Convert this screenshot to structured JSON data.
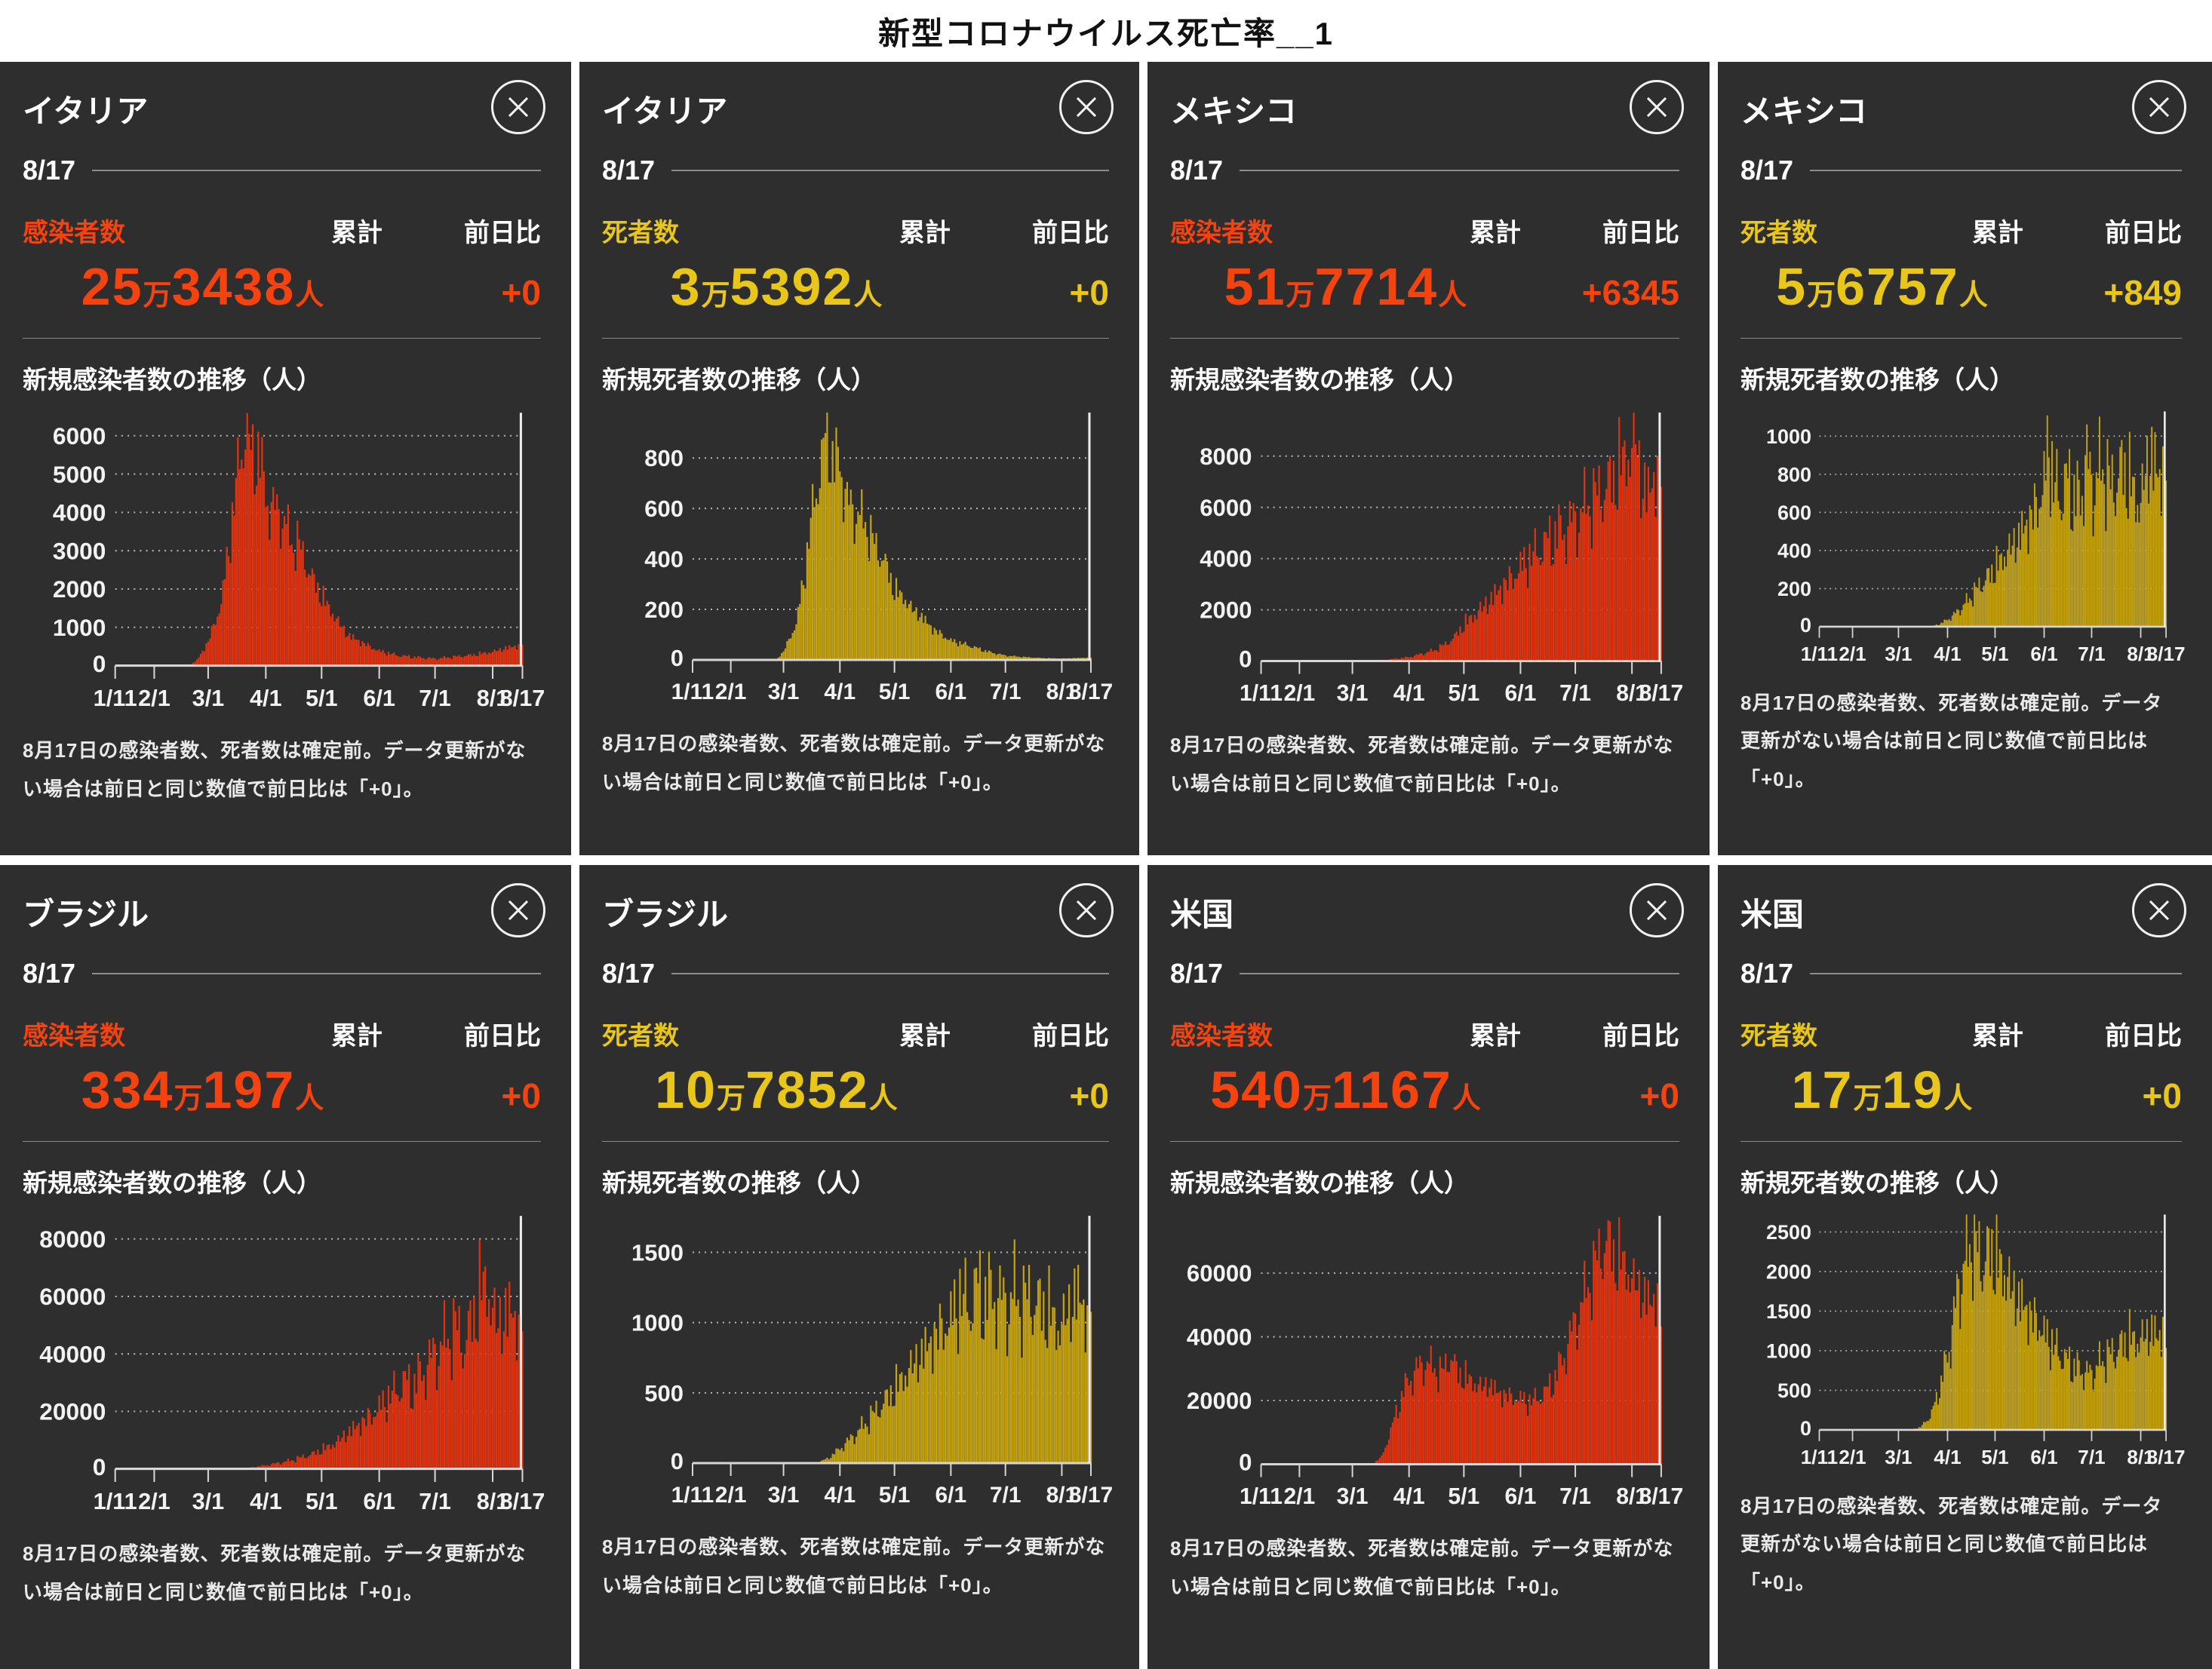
{
  "page_title": "新型コロナウイルス死亡率__1",
  "labels": {
    "date": "8/17",
    "cumulative": "累計",
    "day_over_day": "前日比",
    "man": "万",
    "person": "人"
  },
  "note": "8月17日の感染者数、死者数は確定前。データ更新がない場合は前日と同じ数値で前日比は「+0」。",
  "colors": {
    "infection_text": "#f5430f",
    "infection_bar": "#e23310",
    "death_text": "#e8c61a",
    "death_bar": "#c7a512",
    "panel_bg": "#2e2e2e",
    "grid": "#b5b5b5",
    "axis": "#d6d6d6",
    "cursor": "#ededed",
    "tick_text": "#f2f2f2"
  },
  "x_axis": {
    "total_days": 219,
    "tick_days": [
      0,
      21,
      50,
      81,
      111,
      142,
      172,
      203,
      219
    ],
    "tick_labels": [
      "1/11",
      "2/1",
      "3/1",
      "4/1",
      "5/1",
      "6/1",
      "7/1",
      "8/1",
      "8/17"
    ]
  },
  "panels": [
    {
      "country": "イタリア",
      "metric": "感染者数",
      "metric_type": "infection",
      "value_man": "25",
      "value_rest": "3438",
      "diff": "+0",
      "chart_title": "新規感染者数の推移（人）",
      "chart": {
        "type": "bar",
        "ylim": 6600,
        "yticks": [
          1000,
          2000,
          3000,
          4000,
          5000,
          6000
        ],
        "noise": 0.3,
        "anchors": [
          [
            0,
            0
          ],
          [
            40,
            0
          ],
          [
            44,
            150
          ],
          [
            50,
            650
          ],
          [
            57,
            1700
          ],
          [
            62,
            3600
          ],
          [
            66,
            5300
          ],
          [
            70,
            6550
          ],
          [
            73,
            5700
          ],
          [
            77,
            5900
          ],
          [
            81,
            4600
          ],
          [
            85,
            4300
          ],
          [
            91,
            4000
          ],
          [
            95,
            3300
          ],
          [
            98,
            3400
          ],
          [
            102,
            2900
          ],
          [
            105,
            2500
          ],
          [
            111,
            1900
          ],
          [
            118,
            1350
          ],
          [
            125,
            850
          ],
          [
            132,
            650
          ],
          [
            142,
            400
          ],
          [
            152,
            280
          ],
          [
            162,
            230
          ],
          [
            172,
            190
          ],
          [
            182,
            240
          ],
          [
            192,
            290
          ],
          [
            203,
            380
          ],
          [
            210,
            480
          ],
          [
            217,
            550
          ],
          [
            219,
            630
          ]
        ]
      }
    },
    {
      "country": "イタリア",
      "metric": "死者数",
      "metric_type": "death",
      "value_man": "3",
      "value_rest": "5392",
      "diff": "+0",
      "chart_title": "新規死者数の推移（人）",
      "chart": {
        "type": "bar",
        "ylim": 980,
        "yticks": [
          200,
          400,
          600,
          800
        ],
        "noise": 0.3,
        "anchors": [
          [
            0,
            0
          ],
          [
            46,
            0
          ],
          [
            50,
            35
          ],
          [
            57,
            150
          ],
          [
            62,
            380
          ],
          [
            66,
            620
          ],
          [
            70,
            790
          ],
          [
            74,
            950
          ],
          [
            78,
            800
          ],
          [
            81,
            830
          ],
          [
            85,
            650
          ],
          [
            90,
            610
          ],
          [
            95,
            570
          ],
          [
            100,
            480
          ],
          [
            105,
            420
          ],
          [
            111,
            290
          ],
          [
            116,
            260
          ],
          [
            121,
            210
          ],
          [
            126,
            180
          ],
          [
            132,
            130
          ],
          [
            142,
            80
          ],
          [
            152,
            60
          ],
          [
            162,
            35
          ],
          [
            172,
            18
          ],
          [
            182,
            12
          ],
          [
            192,
            8
          ],
          [
            203,
            6
          ],
          [
            219,
            10
          ]
        ]
      }
    },
    {
      "country": "メキシコ",
      "metric": "感染者数",
      "metric_type": "infection",
      "value_man": "51",
      "value_rest": "7714",
      "diff": "+6345",
      "chart_title": "新規感染者数の推移（人）",
      "chart": {
        "type": "bar",
        "ylim": 9700,
        "yticks": [
          2000,
          4000,
          6000,
          8000
        ],
        "noise": 0.38,
        "anchors": [
          [
            0,
            0
          ],
          [
            58,
            0
          ],
          [
            64,
            30
          ],
          [
            72,
            80
          ],
          [
            81,
            160
          ],
          [
            88,
            300
          ],
          [
            95,
            450
          ],
          [
            101,
            700
          ],
          [
            106,
            1000
          ],
          [
            111,
            1500
          ],
          [
            118,
            2000
          ],
          [
            125,
            2500
          ],
          [
            132,
            3100
          ],
          [
            138,
            3500
          ],
          [
            142,
            3900
          ],
          [
            149,
            4400
          ],
          [
            156,
            4900
          ],
          [
            163,
            5300
          ],
          [
            168,
            5600
          ],
          [
            172,
            5800
          ],
          [
            179,
            6500
          ],
          [
            186,
            7000
          ],
          [
            193,
            7600
          ],
          [
            198,
            8300
          ],
          [
            203,
            8800
          ],
          [
            205,
            9450
          ],
          [
            208,
            7400
          ],
          [
            212,
            7000
          ],
          [
            216,
            7700
          ],
          [
            219,
            8200
          ]
        ]
      }
    },
    {
      "country": "メキシコ",
      "metric": "死者数",
      "metric_type": "death",
      "value_man": "5",
      "value_rest": "6757",
      "diff": "+849",
      "chart_title": "新規死者数の推移（人）",
      "chart": {
        "type": "bar",
        "ylim": 1130,
        "yticks": [
          200,
          400,
          600,
          800,
          1000
        ],
        "noise": 0.5,
        "anchors": [
          [
            0,
            0
          ],
          [
            70,
            0
          ],
          [
            76,
            15
          ],
          [
            81,
            40
          ],
          [
            88,
            90
          ],
          [
            95,
            160
          ],
          [
            101,
            230
          ],
          [
            106,
            280
          ],
          [
            111,
            330
          ],
          [
            118,
            420
          ],
          [
            125,
            500
          ],
          [
            132,
            600
          ],
          [
            138,
            700
          ],
          [
            142,
            820
          ],
          [
            145,
            1060
          ],
          [
            148,
            800
          ],
          [
            152,
            740
          ],
          [
            156,
            830
          ],
          [
            160,
            760
          ],
          [
            165,
            700
          ],
          [
            168,
            980
          ],
          [
            172,
            790
          ],
          [
            176,
            850
          ],
          [
            180,
            920
          ],
          [
            184,
            780
          ],
          [
            188,
            850
          ],
          [
            192,
            900
          ],
          [
            196,
            820
          ],
          [
            200,
            740
          ],
          [
            203,
            700
          ],
          [
            206,
            900
          ],
          [
            209,
            970
          ],
          [
            212,
            920
          ],
          [
            215,
            860
          ],
          [
            219,
            990
          ]
        ]
      }
    },
    {
      "country": "ブラジル",
      "metric": "感染者数",
      "metric_type": "infection",
      "value_man": "334",
      "value_rest": "197",
      "diff": "+0",
      "chart_title": "新規感染者数の推移（人）",
      "chart": {
        "type": "bar",
        "ylim": 88000,
        "yticks": [
          20000,
          40000,
          60000,
          80000
        ],
        "noise": 0.45,
        "anchors": [
          [
            0,
            0
          ],
          [
            62,
            0
          ],
          [
            70,
            250
          ],
          [
            81,
            1300
          ],
          [
            88,
            2200
          ],
          [
            95,
            3200
          ],
          [
            101,
            4500
          ],
          [
            106,
            5500
          ],
          [
            111,
            7000
          ],
          [
            118,
            9500
          ],
          [
            125,
            13500
          ],
          [
            132,
            17000
          ],
          [
            138,
            20000
          ],
          [
            142,
            23000
          ],
          [
            149,
            28000
          ],
          [
            156,
            33000
          ],
          [
            160,
            30000
          ],
          [
            165,
            36000
          ],
          [
            172,
            43000
          ],
          [
            178,
            48000
          ],
          [
            183,
            53000
          ],
          [
            188,
            47000
          ],
          [
            193,
            58000
          ],
          [
            197,
            67500
          ],
          [
            200,
            69000
          ],
          [
            205,
            54000
          ],
          [
            209,
            57000
          ],
          [
            213,
            60000
          ],
          [
            216,
            55000
          ],
          [
            218,
            50000
          ],
          [
            219,
            60000
          ]
        ]
      }
    },
    {
      "country": "ブラジル",
      "metric": "死者数",
      "metric_type": "death",
      "value_man": "10",
      "value_rest": "7852",
      "diff": "+0",
      "chart_title": "新規死者数の推移（人）",
      "chart": {
        "type": "bar",
        "ylim": 1760,
        "yticks": [
          500,
          1000,
          1500
        ],
        "noise": 0.45,
        "anchors": [
          [
            0,
            0
          ],
          [
            68,
            0
          ],
          [
            75,
            40
          ],
          [
            81,
            110
          ],
          [
            88,
            200
          ],
          [
            95,
            300
          ],
          [
            101,
            400
          ],
          [
            106,
            480
          ],
          [
            111,
            560
          ],
          [
            118,
            700
          ],
          [
            125,
            820
          ],
          [
            132,
            950
          ],
          [
            138,
            1050
          ],
          [
            142,
            1100
          ],
          [
            147,
            1270
          ],
          [
            152,
            1200
          ],
          [
            156,
            1350
          ],
          [
            161,
            1250
          ],
          [
            166,
            1300
          ],
          [
            172,
            1200
          ],
          [
            177,
            1280
          ],
          [
            182,
            1230
          ],
          [
            186,
            1270
          ],
          [
            191,
            1200
          ],
          [
            196,
            1150
          ],
          [
            200,
            1050
          ],
          [
            203,
            1060
          ],
          [
            207,
            1180
          ],
          [
            211,
            1300
          ],
          [
            214,
            1250
          ],
          [
            217,
            1100
          ],
          [
            219,
            1350
          ]
        ]
      }
    },
    {
      "country": "米国",
      "metric": "感染者数",
      "metric_type": "infection",
      "value_man": "540",
      "value_rest": "1167",
      "diff": "+0",
      "chart_title": "新規感染者数の推移（人）",
      "chart": {
        "type": "bar",
        "ylim": 78000,
        "yticks": [
          20000,
          40000,
          60000
        ],
        "noise": 0.3,
        "anchors": [
          [
            0,
            0
          ],
          [
            52,
            0
          ],
          [
            57,
            80
          ],
          [
            62,
            500
          ],
          [
            66,
            2500
          ],
          [
            70,
            9000
          ],
          [
            74,
            17000
          ],
          [
            78,
            24000
          ],
          [
            81,
            27500
          ],
          [
            85,
            31000
          ],
          [
            90,
            33500
          ],
          [
            95,
            31500
          ],
          [
            99,
            30000
          ],
          [
            104,
            36000
          ],
          [
            108,
            29500
          ],
          [
            111,
            29000
          ],
          [
            116,
            27000
          ],
          [
            121,
            25500
          ],
          [
            125,
            26500
          ],
          [
            130,
            23500
          ],
          [
            135,
            22500
          ],
          [
            142,
            21500
          ],
          [
            146,
            20500
          ],
          [
            151,
            21500
          ],
          [
            156,
            24000
          ],
          [
            161,
            28500
          ],
          [
            166,
            36000
          ],
          [
            172,
            47000
          ],
          [
            177,
            55000
          ],
          [
            182,
            64000
          ],
          [
            186,
            70000
          ],
          [
            189,
            74500
          ],
          [
            193,
            69000
          ],
          [
            197,
            67000
          ],
          [
            200,
            65000
          ],
          [
            203,
            61000
          ],
          [
            207,
            58000
          ],
          [
            210,
            55500
          ],
          [
            214,
            53000
          ],
          [
            217,
            56000
          ],
          [
            219,
            50000
          ]
        ]
      }
    },
    {
      "country": "米国",
      "metric": "死者数",
      "metric_type": "death",
      "value_man": "17",
      "value_rest": "19",
      "diff": "+0",
      "chart_title": "新規死者数の推移（人）",
      "chart": {
        "type": "bar",
        "ylim": 2720,
        "yticks": [
          500,
          1000,
          1500,
          2000,
          2500
        ],
        "noise": 0.45,
        "anchors": [
          [
            0,
            0
          ],
          [
            58,
            0
          ],
          [
            64,
            40
          ],
          [
            70,
            180
          ],
          [
            75,
            480
          ],
          [
            81,
            1000
          ],
          [
            85,
            1500
          ],
          [
            88,
            1950
          ],
          [
            92,
            2250
          ],
          [
            95,
            2500
          ],
          [
            97,
            2650
          ],
          [
            100,
            2400
          ],
          [
            104,
            2300
          ],
          [
            108,
            2450
          ],
          [
            111,
            2350
          ],
          [
            115,
            2200
          ],
          [
            118,
            2100
          ],
          [
            122,
            1900
          ],
          [
            125,
            1800
          ],
          [
            129,
            1700
          ],
          [
            132,
            1600
          ],
          [
            136,
            1500
          ],
          [
            139,
            1450
          ],
          [
            142,
            1300
          ],
          [
            146,
            1200
          ],
          [
            151,
            1050
          ],
          [
            156,
            950
          ],
          [
            161,
            850
          ],
          [
            166,
            800
          ],
          [
            172,
            750
          ],
          [
            177,
            900
          ],
          [
            182,
            1000
          ],
          [
            186,
            1050
          ],
          [
            191,
            1150
          ],
          [
            196,
            1250
          ],
          [
            200,
            1200
          ],
          [
            203,
            1250
          ],
          [
            207,
            1300
          ],
          [
            211,
            1350
          ],
          [
            214,
            1250
          ],
          [
            217,
            1400
          ],
          [
            219,
            1300
          ]
        ]
      }
    }
  ]
}
